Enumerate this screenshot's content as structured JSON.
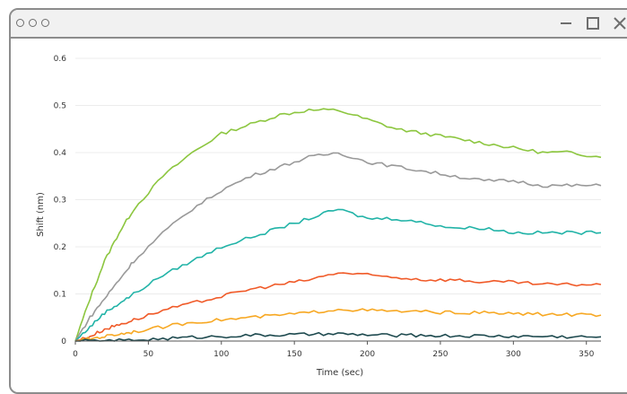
{
  "window": {
    "controls": [
      "minimize-icon",
      "maximize-icon",
      "close-icon"
    ]
  },
  "chart_data": {
    "type": "line",
    "xlabel": "Time (sec)",
    "ylabel": "Shift (nm)",
    "xlim": [
      0,
      360
    ],
    "ylim": [
      0,
      0.6
    ],
    "xticks": [
      0,
      50,
      100,
      150,
      200,
      250,
      300,
      350
    ],
    "yticks": [
      0,
      0.1,
      0.2,
      0.3,
      0.4,
      0.5,
      0.6
    ],
    "ytick_labels": [
      "0",
      "0.1",
      "0.2",
      "0.3",
      "0.4",
      "0.5",
      "0.6"
    ],
    "grid": true,
    "series": [
      {
        "color": "#8cc63f",
        "points": [
          [
            0,
            0
          ],
          [
            10,
            0.09
          ],
          [
            20,
            0.17
          ],
          [
            30,
            0.23
          ],
          [
            40,
            0.28
          ],
          [
            60,
            0.35
          ],
          [
            80,
            0.4
          ],
          [
            100,
            0.44
          ],
          [
            120,
            0.46
          ],
          [
            140,
            0.48
          ],
          [
            160,
            0.49
          ],
          [
            180,
            0.49
          ],
          [
            200,
            0.47
          ],
          [
            220,
            0.45
          ],
          [
            240,
            0.44
          ],
          [
            260,
            0.43
          ],
          [
            280,
            0.42
          ],
          [
            300,
            0.41
          ],
          [
            320,
            0.4
          ],
          [
            340,
            0.4
          ],
          [
            360,
            0.39
          ]
        ]
      },
      {
        "color": "#999999",
        "points": [
          [
            0,
            0
          ],
          [
            10,
            0.05
          ],
          [
            20,
            0.09
          ],
          [
            30,
            0.13
          ],
          [
            40,
            0.17
          ],
          [
            60,
            0.23
          ],
          [
            80,
            0.28
          ],
          [
            100,
            0.32
          ],
          [
            120,
            0.35
          ],
          [
            140,
            0.37
          ],
          [
            160,
            0.39
          ],
          [
            180,
            0.4
          ],
          [
            200,
            0.38
          ],
          [
            220,
            0.37
          ],
          [
            240,
            0.36
          ],
          [
            260,
            0.35
          ],
          [
            280,
            0.34
          ],
          [
            300,
            0.34
          ],
          [
            320,
            0.33
          ],
          [
            340,
            0.33
          ],
          [
            360,
            0.33
          ]
        ]
      },
      {
        "color": "#21b3a7",
        "points": [
          [
            0,
            0
          ],
          [
            10,
            0.03
          ],
          [
            20,
            0.06
          ],
          [
            30,
            0.08
          ],
          [
            40,
            0.1
          ],
          [
            60,
            0.14
          ],
          [
            80,
            0.17
          ],
          [
            100,
            0.2
          ],
          [
            120,
            0.22
          ],
          [
            140,
            0.24
          ],
          [
            160,
            0.26
          ],
          [
            180,
            0.28
          ],
          [
            200,
            0.26
          ],
          [
            220,
            0.26
          ],
          [
            240,
            0.25
          ],
          [
            260,
            0.24
          ],
          [
            280,
            0.24
          ],
          [
            300,
            0.23
          ],
          [
            320,
            0.23
          ],
          [
            340,
            0.23
          ],
          [
            360,
            0.23
          ]
        ]
      },
      {
        "color": "#f05a28",
        "points": [
          [
            0,
            0
          ],
          [
            10,
            0.01
          ],
          [
            20,
            0.025
          ],
          [
            30,
            0.035
          ],
          [
            40,
            0.045
          ],
          [
            60,
            0.065
          ],
          [
            80,
            0.08
          ],
          [
            100,
            0.095
          ],
          [
            120,
            0.11
          ],
          [
            140,
            0.12
          ],
          [
            160,
            0.13
          ],
          [
            180,
            0.145
          ],
          [
            200,
            0.14
          ],
          [
            220,
            0.135
          ],
          [
            240,
            0.13
          ],
          [
            260,
            0.13
          ],
          [
            280,
            0.125
          ],
          [
            300,
            0.125
          ],
          [
            320,
            0.12
          ],
          [
            340,
            0.12
          ],
          [
            360,
            0.12
          ]
        ]
      },
      {
        "color": "#f7a823",
        "points": [
          [
            0,
            0
          ],
          [
            10,
            0.005
          ],
          [
            20,
            0.01
          ],
          [
            30,
            0.015
          ],
          [
            40,
            0.02
          ],
          [
            60,
            0.03
          ],
          [
            80,
            0.04
          ],
          [
            100,
            0.045
          ],
          [
            120,
            0.05
          ],
          [
            140,
            0.055
          ],
          [
            160,
            0.06
          ],
          [
            180,
            0.068
          ],
          [
            200,
            0.065
          ],
          [
            220,
            0.063
          ],
          [
            240,
            0.062
          ],
          [
            260,
            0.06
          ],
          [
            280,
            0.06
          ],
          [
            300,
            0.058
          ],
          [
            320,
            0.057
          ],
          [
            340,
            0.056
          ],
          [
            360,
            0.055
          ]
        ]
      },
      {
        "color": "#1e4a4f",
        "points": [
          [
            0,
            0
          ],
          [
            20,
            0
          ],
          [
            40,
            0.002
          ],
          [
            60,
            0.005
          ],
          [
            80,
            0.008
          ],
          [
            100,
            0.01
          ],
          [
            120,
            0.012
          ],
          [
            140,
            0.013
          ],
          [
            160,
            0.014
          ],
          [
            180,
            0.015
          ],
          [
            200,
            0.013
          ],
          [
            220,
            0.012
          ],
          [
            240,
            0.012
          ],
          [
            260,
            0.011
          ],
          [
            280,
            0.011
          ],
          [
            300,
            0.01
          ],
          [
            320,
            0.01
          ],
          [
            340,
            0.009
          ],
          [
            360,
            0.009
          ]
        ]
      }
    ]
  }
}
